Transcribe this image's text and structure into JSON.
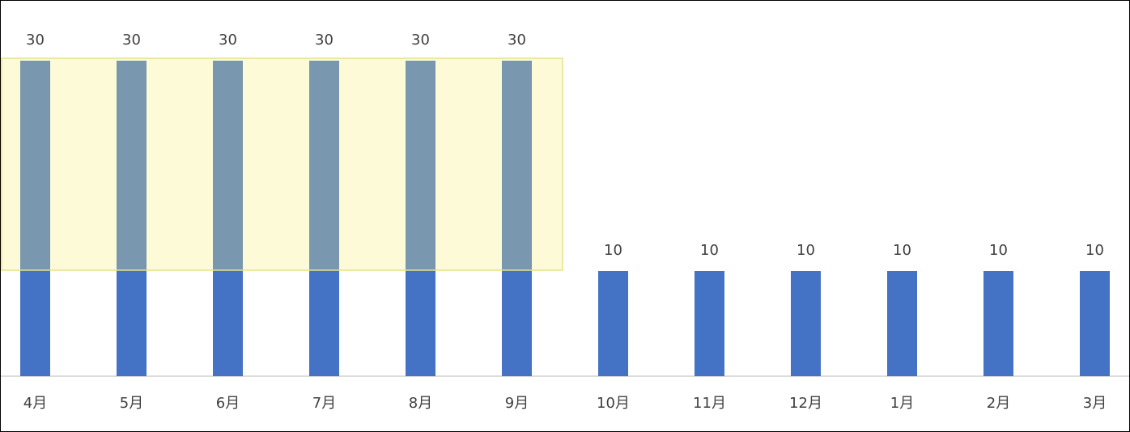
{
  "chart_data": {
    "type": "bar",
    "categories": [
      "4月",
      "5月",
      "6月",
      "7月",
      "8月",
      "9月",
      "10月",
      "11月",
      "12月",
      "1月",
      "2月",
      "3月"
    ],
    "values": [
      30,
      30,
      30,
      30,
      30,
      30,
      10,
      10,
      10,
      10,
      10,
      10
    ],
    "color": "#4472c4"
  }
}
